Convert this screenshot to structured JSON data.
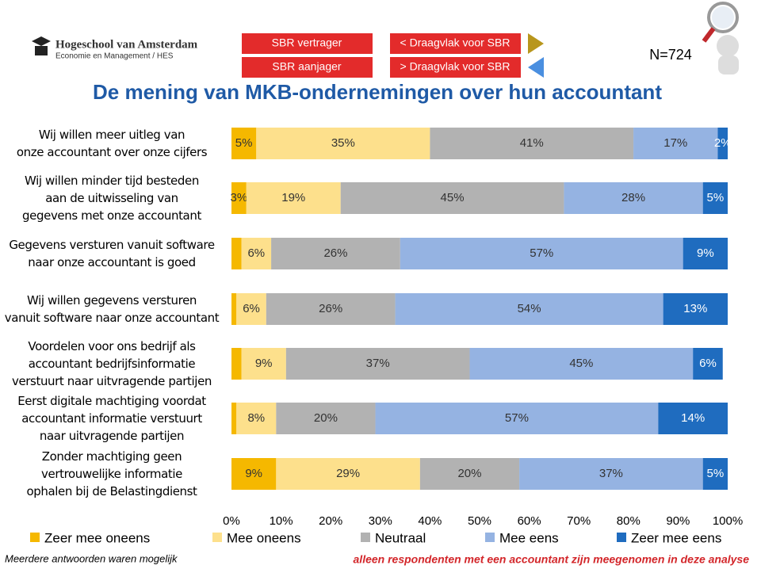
{
  "header": {
    "logo_name": "Hogeschool van Amsterdam",
    "logo_sub": "Economie en Management / HES",
    "buttons": [
      "SBR vertrager",
      "SBR aanjager",
      "< Draagvlak voor SBR",
      "> Draagvlak voor SBR"
    ],
    "sample": "N=724"
  },
  "chart_data": {
    "type": "bar",
    "orientation": "horizontal",
    "stacked": true,
    "title": "De mening van MKB-ondernemingen over hun accountant",
    "categories": [
      "Wij willen meer uitleg van\nonze accountant over onze cijfers",
      "Wij willen minder tijd besteden\naan de uitwisseling van\ngegevens met onze accountant",
      "Gegevens versturen vanuit software\nnaar onze accountant is goed",
      "Wij willen gegevens versturen\nvanuit software naar onze accountant",
      "Voordelen voor ons bedrijf als\naccountant bedrijfsinformatie\nverstuurt naar uitvragende partijen",
      "Eerst digitale machtiging voordat\naccountant informatie verstuurt\nnaar uitvragende partijen",
      "Zonder machtiging geen\nvertrouwelijke informatie\nophalen bij de Belastingdienst"
    ],
    "series": [
      {
        "name": "Zeer mee oneens",
        "color": "#f5b800",
        "values": [
          5,
          3,
          2,
          1,
          2,
          1,
          9
        ],
        "value_labels": [
          "5%",
          "3%",
          null,
          null,
          null,
          null,
          "9%"
        ]
      },
      {
        "name": "Mee oneens",
        "color": "#fde08c",
        "values": [
          35,
          19,
          6,
          6,
          9,
          8,
          29
        ],
        "value_labels": [
          "35%",
          "19%",
          "6%",
          "6%",
          "9%",
          "8%",
          "29%"
        ]
      },
      {
        "name": "Neutraal",
        "color": "#b2b2b2",
        "values": [
          41,
          45,
          26,
          26,
          37,
          20,
          20
        ],
        "value_labels": [
          "41%",
          "45%",
          "26%",
          "26%",
          "37%",
          "20%",
          "20%"
        ]
      },
      {
        "name": "Mee eens",
        "color": "#95b3e2",
        "values": [
          17,
          28,
          57,
          54,
          45,
          57,
          37
        ],
        "value_labels": [
          "17%",
          "28%",
          "57%",
          "54%",
          "45%",
          "57%",
          "37%"
        ]
      },
      {
        "name": "Zeer mee eens",
        "color": "#1f6cbf",
        "values": [
          2,
          5,
          9,
          13,
          6,
          14,
          5
        ],
        "value_labels": [
          "2%",
          "5%",
          "9%",
          "13%",
          "6%",
          "14%",
          "5%"
        ]
      }
    ],
    "xlim": [
      0,
      100
    ],
    "xticks": [
      {
        "value": 0,
        "label": "0%"
      },
      {
        "value": 10,
        "label": "10%"
      },
      {
        "value": 20,
        "label": "20%"
      },
      {
        "value": 30,
        "label": "30%"
      },
      {
        "value": 40,
        "label": "40%"
      },
      {
        "value": 50,
        "label": "50%"
      },
      {
        "value": 60,
        "label": "60%"
      },
      {
        "value": 70,
        "label": "70%"
      },
      {
        "value": 80,
        "label": "80%"
      },
      {
        "value": 90,
        "label": "90%"
      },
      {
        "value": 100,
        "label": "100%"
      }
    ],
    "legend": "bottom"
  },
  "footer": {
    "note": "Meerdere antwoorden waren mogelijk",
    "remark": "alleen respondenten met een accountant zijn meegenomen in deze analyse"
  }
}
